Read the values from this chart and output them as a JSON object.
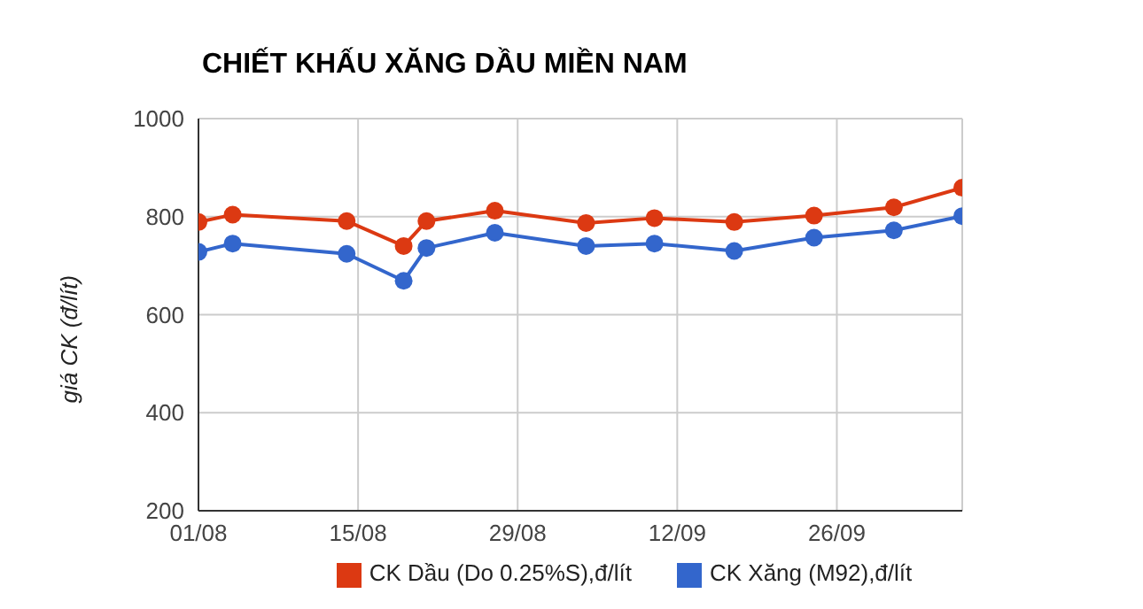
{
  "chart_data": {
    "type": "line",
    "title": "CHIẾT KHẤU XĂNG DẦU MIỀN NAM",
    "ylabel": "giá CK (đ/lít)",
    "x": [
      "--08-01",
      "--08-04",
      "--08-14",
      "--08-19",
      "--08-21",
      "--08-27",
      "--09-04",
      "--09-10",
      "--09-17",
      "--09-24",
      "--10-01",
      "--10-07"
    ],
    "series": [
      {
        "name": "CK Xăng (M92),đ/lít",
        "color": "#3366cc",
        "values": [
          728,
          745,
          724,
          669,
          736,
          767,
          740,
          745,
          730,
          757,
          772,
          801
        ]
      },
      {
        "name": "CK Dầu (Do 0.25%S),đ/lít",
        "color": "#dc3912",
        "values": [
          789,
          804,
          791,
          740,
          791,
          812,
          787,
          797,
          789,
          802,
          819,
          859
        ]
      }
    ],
    "xlim": [
      "--08-01",
      "--10-07"
    ],
    "xticks": [
      {
        "value": "--08-01",
        "label": "01/08"
      },
      {
        "value": "--08-15",
        "label": "15/08"
      },
      {
        "value": "--08-29",
        "label": "29/08"
      },
      {
        "value": "--09-12",
        "label": "12/09"
      },
      {
        "value": "--09-26",
        "label": "26/09"
      }
    ],
    "ylim": [
      200,
      1000
    ],
    "yticks": [
      200,
      400,
      600,
      800,
      1000
    ],
    "grid": true,
    "legend": "bottom",
    "marker": "circle",
    "line_style": "solid"
  }
}
